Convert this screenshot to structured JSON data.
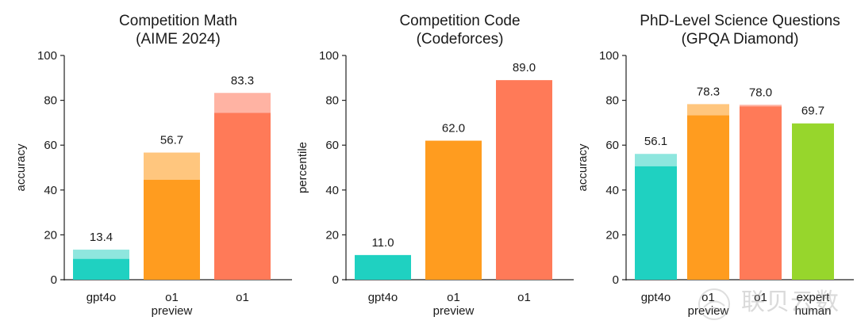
{
  "chart_data": [
    {
      "type": "bar",
      "title": [
        "Competition Math",
        "(AIME 2024)"
      ],
      "ylabel": "accuracy",
      "ylim": [
        0,
        100
      ],
      "yticks": [
        0,
        20,
        40,
        60,
        80,
        100
      ],
      "categories": [
        [
          "gpt4o"
        ],
        [
          "o1",
          "preview"
        ],
        [
          "o1"
        ]
      ],
      "bars": [
        {
          "value": 13.4,
          "base": 9.3,
          "label": "13.4",
          "color": "#1fd1c1",
          "cap_color": "#8ee6de"
        },
        {
          "value": 56.7,
          "base": 44.6,
          "label": "56.7",
          "color": "#ff9c1f",
          "cap_color": "#ffc67e"
        },
        {
          "value": 83.3,
          "base": 74.4,
          "label": "83.3",
          "color": "#ff7a58",
          "cap_color": "#ffb3a3"
        }
      ]
    },
    {
      "type": "bar",
      "title": [
        "Competition Code",
        "(Codeforces)"
      ],
      "ylabel": "percentile",
      "ylim": [
        0,
        100
      ],
      "yticks": [
        0,
        20,
        40,
        60,
        80,
        100
      ],
      "categories": [
        [
          "gpt4o"
        ],
        [
          "o1",
          "preview"
        ],
        [
          "o1"
        ]
      ],
      "bars": [
        {
          "value": 11.0,
          "base": 11.0,
          "label": "11.0",
          "color": "#1fd1c1",
          "cap_color": "#8ee6de"
        },
        {
          "value": 62.0,
          "base": 62.0,
          "label": "62.0",
          "color": "#ff9c1f",
          "cap_color": "#ffc67e"
        },
        {
          "value": 89.0,
          "base": 89.0,
          "label": "89.0",
          "color": "#ff7a58",
          "cap_color": "#ffb3a3"
        }
      ]
    },
    {
      "type": "bar",
      "title": [
        "PhD-Level Science Questions",
        "(GPQA Diamond)"
      ],
      "ylabel": "accuracy",
      "ylim": [
        0,
        100
      ],
      "yticks": [
        0,
        20,
        40,
        60,
        80,
        100
      ],
      "categories": [
        [
          "gpt4o"
        ],
        [
          "o1",
          "preview"
        ],
        [
          "o1"
        ],
        [
          "expert",
          "human"
        ]
      ],
      "bars": [
        {
          "value": 56.1,
          "base": 50.6,
          "label": "56.1",
          "color": "#1fd1c1",
          "cap_color": "#8ee6de"
        },
        {
          "value": 78.3,
          "base": 73.3,
          "label": "78.3",
          "color": "#ff9c1f",
          "cap_color": "#ffc67e"
        },
        {
          "value": 78.0,
          "base": 77.3,
          "label": "78.0",
          "color": "#ff7a58",
          "cap_color": "#ffb3a3"
        },
        {
          "value": 69.7,
          "base": 69.7,
          "label": "69.7",
          "color": "#97d62c",
          "cap_color": "#c6ea8a"
        }
      ]
    }
  ],
  "watermark": {
    "text": "联贝云数"
  }
}
